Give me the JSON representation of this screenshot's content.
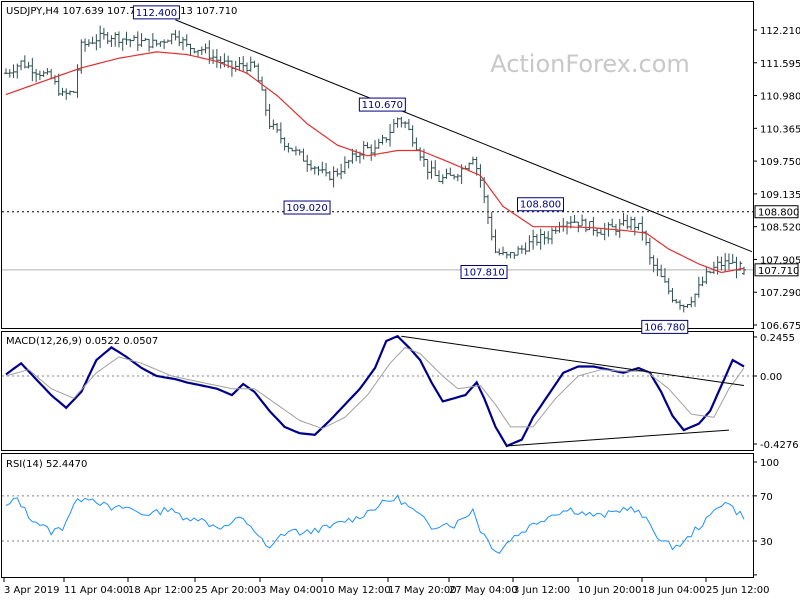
{
  "chart_data": [
    {
      "panel": "price",
      "type": "candlestick-ohlc",
      "title": "USDJPY,H4  107.639 107.767 107.613 107.710",
      "symbol": "USDJPY",
      "timeframe": "H4",
      "last_bar": {
        "open": 107.639,
        "high": 107.767,
        "low": 107.613,
        "close": 107.71
      },
      "watermark": "ActionForex.com",
      "colors": {
        "bars": "#2f4f4f",
        "moving_average": "#e03030",
        "trendline": "#000000",
        "label_box": "#000080"
      },
      "y_ticks": [
        "112.210",
        "111.595",
        "110.980",
        "110.365",
        "109.750",
        "109.135",
        "108.520",
        "107.905",
        "107.290",
        "106.675"
      ],
      "ylim": [
        106.52,
        112.52
      ],
      "x_ticks": [
        "3 Apr 2019",
        "11 Apr 04:00",
        "18 Apr 12:00",
        "25 Apr 20:00",
        "3 May 04:00",
        "10 May 12:00",
        "17 May 20:00",
        "27 May 04:00",
        "3 Jun 12:00",
        "10 Jun 20:00",
        "18 Jun 04:00",
        "25 Jun 12:00"
      ],
      "swing_labels": [
        {
          "text": "112.400",
          "bar": 45,
          "value": 112.4,
          "side": "above"
        },
        {
          "text": "110.670",
          "bar": 105,
          "value": 110.67,
          "side": "above"
        },
        {
          "text": "109.020",
          "bar": 85,
          "value": 109.02,
          "side": "below"
        },
        {
          "text": "108.800",
          "bar": 147,
          "value": 108.8,
          "side": "above"
        },
        {
          "text": "107.810",
          "bar": 132,
          "value": 107.81,
          "side": "below"
        },
        {
          "text": "106.780",
          "bar": 180,
          "value": 106.78,
          "side": "below"
        }
      ],
      "horizontal_levels": [
        {
          "value": 108.8,
          "label": "108.800",
          "style": "dotted"
        },
        {
          "value": 107.71,
          "label": "107.710",
          "style": "solid-grey",
          "current_price": true
        }
      ],
      "trendlines": [
        {
          "from": {
            "bar": 45,
            "value": 112.4
          },
          "to": {
            "bar": 196,
            "value": 108.05
          }
        }
      ],
      "close_anchors": [
        [
          0,
          111.4
        ],
        [
          4,
          111.6
        ],
        [
          8,
          111.45
        ],
        [
          12,
          111.3
        ],
        [
          15,
          110.98
        ],
        [
          18,
          111.05
        ],
        [
          20,
          111.9
        ],
        [
          24,
          112.05
        ],
        [
          28,
          112.1
        ],
        [
          34,
          112.0
        ],
        [
          40,
          111.95
        ],
        [
          45,
          112.15
        ],
        [
          48,
          111.9
        ],
        [
          52,
          111.85
        ],
        [
          56,
          111.65
        ],
        [
          60,
          111.5
        ],
        [
          63,
          111.55
        ],
        [
          66,
          111.5
        ],
        [
          68,
          111.0
        ],
        [
          70,
          110.45
        ],
        [
          74,
          110.1
        ],
        [
          78,
          109.85
        ],
        [
          82,
          109.65
        ],
        [
          85,
          109.45
        ],
        [
          88,
          109.55
        ],
        [
          92,
          109.8
        ],
        [
          95,
          110.0
        ],
        [
          98,
          109.95
        ],
        [
          101,
          110.2
        ],
        [
          104,
          110.55
        ],
        [
          106,
          110.45
        ],
        [
          109,
          110.05
        ],
        [
          112,
          109.6
        ],
        [
          115,
          109.4
        ],
        [
          118,
          109.45
        ],
        [
          121,
          109.6
        ],
        [
          124,
          109.85
        ],
        [
          126,
          109.4
        ],
        [
          128,
          108.7
        ],
        [
          130,
          108.05
        ],
        [
          133,
          107.95
        ],
        [
          137,
          108.1
        ],
        [
          140,
          108.25
        ],
        [
          144,
          108.35
        ],
        [
          147,
          108.6
        ],
        [
          150,
          108.65
        ],
        [
          154,
          108.55
        ],
        [
          158,
          108.45
        ],
        [
          162,
          108.5
        ],
        [
          166,
          108.6
        ],
        [
          169,
          108.45
        ],
        [
          171,
          107.9
        ],
        [
          174,
          107.55
        ],
        [
          177,
          107.2
        ],
        [
          180,
          107.05
        ],
        [
          183,
          107.25
        ],
        [
          186,
          107.6
        ],
        [
          189,
          107.8
        ],
        [
          192,
          107.85
        ],
        [
          196,
          107.71
        ]
      ],
      "ma_anchors": [
        [
          0,
          111.0
        ],
        [
          10,
          111.25
        ],
        [
          20,
          111.5
        ],
        [
          30,
          111.68
        ],
        [
          40,
          111.8
        ],
        [
          48,
          111.75
        ],
        [
          56,
          111.62
        ],
        [
          64,
          111.4
        ],
        [
          72,
          110.98
        ],
        [
          80,
          110.45
        ],
        [
          88,
          110.05
        ],
        [
          96,
          109.85
        ],
        [
          104,
          109.95
        ],
        [
          110,
          109.95
        ],
        [
          118,
          109.72
        ],
        [
          126,
          109.48
        ],
        [
          132,
          108.9
        ],
        [
          140,
          108.52
        ],
        [
          148,
          108.52
        ],
        [
          156,
          108.5
        ],
        [
          164,
          108.45
        ],
        [
          170,
          108.4
        ],
        [
          176,
          108.1
        ],
        [
          184,
          107.82
        ],
        [
          190,
          107.66
        ],
        [
          196,
          107.74
        ]
      ]
    },
    {
      "panel": "macd",
      "type": "line",
      "title": "MACD(12,26,9) 0.0522 0.0507",
      "params": [
        12,
        26,
        9
      ],
      "macd_value": 0.0522,
      "signal_value": 0.0507,
      "y_ticks": [
        "0.2455",
        "0.00",
        "-0.4276"
      ],
      "ylim": [
        -0.5,
        0.3
      ],
      "colors": {
        "macd": "#00008b",
        "signal": "#a0a0a0",
        "trendline": "#000000"
      },
      "series": [
        {
          "name": "MACD",
          "anchors": [
            [
              0,
              0.01
            ],
            [
              4,
              0.08
            ],
            [
              8,
              -0.02
            ],
            [
              12,
              -0.12
            ],
            [
              16,
              -0.2
            ],
            [
              20,
              -0.1
            ],
            [
              24,
              0.1
            ],
            [
              28,
              0.18
            ],
            [
              32,
              0.12
            ],
            [
              36,
              0.05
            ],
            [
              40,
              0.0
            ],
            [
              45,
              -0.02
            ],
            [
              48,
              -0.04
            ],
            [
              52,
              -0.06
            ],
            [
              56,
              -0.08
            ],
            [
              60,
              -0.12
            ],
            [
              63,
              -0.05
            ],
            [
              66,
              -0.1
            ],
            [
              70,
              -0.22
            ],
            [
              74,
              -0.32
            ],
            [
              78,
              -0.36
            ],
            [
              82,
              -0.37
            ],
            [
              86,
              -0.28
            ],
            [
              90,
              -0.18
            ],
            [
              94,
              -0.08
            ],
            [
              98,
              0.05
            ],
            [
              101,
              0.22
            ],
            [
              104,
              0.25
            ],
            [
              107,
              0.18
            ],
            [
              110,
              0.1
            ],
            [
              113,
              -0.04
            ],
            [
              116,
              -0.16
            ],
            [
              119,
              -0.14
            ],
            [
              122,
              -0.12
            ],
            [
              125,
              -0.04
            ],
            [
              127,
              -0.14
            ],
            [
              130,
              -0.32
            ],
            [
              133,
              -0.44
            ],
            [
              137,
              -0.4
            ],
            [
              140,
              -0.26
            ],
            [
              144,
              -0.12
            ],
            [
              148,
              0.02
            ],
            [
              152,
              0.06
            ],
            [
              156,
              0.06
            ],
            [
              160,
              0.04
            ],
            [
              164,
              0.02
            ],
            [
              168,
              0.05
            ],
            [
              171,
              0.02
            ],
            [
              174,
              -0.1
            ],
            [
              177,
              -0.25
            ],
            [
              180,
              -0.34
            ],
            [
              184,
              -0.3
            ],
            [
              187,
              -0.22
            ],
            [
              190,
              -0.06
            ],
            [
              193,
              0.1
            ],
            [
              196,
              0.06
            ]
          ]
        },
        {
          "name": "Signal",
          "anchors": [
            [
              0,
              0.0
            ],
            [
              6,
              0.04
            ],
            [
              12,
              -0.08
            ],
            [
              18,
              -0.14
            ],
            [
              24,
              0.02
            ],
            [
              30,
              0.12
            ],
            [
              36,
              0.08
            ],
            [
              44,
              0.0
            ],
            [
              52,
              -0.04
            ],
            [
              60,
              -0.08
            ],
            [
              66,
              -0.08
            ],
            [
              72,
              -0.18
            ],
            [
              78,
              -0.28
            ],
            [
              84,
              -0.33
            ],
            [
              90,
              -0.26
            ],
            [
              96,
              -0.12
            ],
            [
              102,
              0.08
            ],
            [
              106,
              0.18
            ],
            [
              110,
              0.14
            ],
            [
              116,
              0.0
            ],
            [
              120,
              -0.08
            ],
            [
              126,
              -0.06
            ],
            [
              130,
              -0.18
            ],
            [
              134,
              -0.32
            ],
            [
              140,
              -0.32
            ],
            [
              146,
              -0.14
            ],
            [
              152,
              0.0
            ],
            [
              158,
              0.04
            ],
            [
              164,
              0.03
            ],
            [
              170,
              0.03
            ],
            [
              176,
              -0.08
            ],
            [
              182,
              -0.24
            ],
            [
              188,
              -0.26
            ],
            [
              192,
              -0.08
            ],
            [
              196,
              0.05
            ]
          ]
        }
      ],
      "trendlines": [
        {
          "from": {
            "bar": 105,
            "value": 0.25
          },
          "to": {
            "bar": 196,
            "value": -0.06
          }
        },
        {
          "from": {
            "bar": 133,
            "value": -0.44
          },
          "to": {
            "bar": 192,
            "value": -0.34
          }
        }
      ]
    },
    {
      "panel": "rsi",
      "type": "line",
      "title": "RSI(14) 52.4470",
      "params": [
        14
      ],
      "rsi_value": 52.447,
      "y_ticks": [
        "100",
        "70",
        "30",
        "0"
      ],
      "ylim": [
        0,
        100
      ],
      "levels": [
        70,
        30
      ],
      "colors": {
        "rsi": "#1e90ff",
        "levels": "#808080"
      },
      "series": [
        {
          "name": "RSI",
          "anchors": [
            [
              0,
              60
            ],
            [
              3,
              68
            ],
            [
              6,
              52
            ],
            [
              9,
              45
            ],
            [
              12,
              38
            ],
            [
              15,
              42
            ],
            [
              18,
              62
            ],
            [
              21,
              70
            ],
            [
              24,
              66
            ],
            [
              28,
              58
            ],
            [
              32,
              60
            ],
            [
              36,
              54
            ],
            [
              40,
              55
            ],
            [
              44,
              60
            ],
            [
              47,
              48
            ],
            [
              50,
              52
            ],
            [
              54,
              45
            ],
            [
              58,
              42
            ],
            [
              62,
              50
            ],
            [
              65,
              44
            ],
            [
              68,
              30
            ],
            [
              70,
              22
            ],
            [
              73,
              35
            ],
            [
              76,
              40
            ],
            [
              79,
              36
            ],
            [
              82,
              40
            ],
            [
              86,
              42
            ],
            [
              90,
              48
            ],
            [
              93,
              50
            ],
            [
              97,
              58
            ],
            [
              101,
              65
            ],
            [
              104,
              68
            ],
            [
              107,
              60
            ],
            [
              110,
              52
            ],
            [
              113,
              42
            ],
            [
              116,
              46
            ],
            [
              119,
              44
            ],
            [
              122,
              52
            ],
            [
              124,
              58
            ],
            [
              126,
              40
            ],
            [
              129,
              26
            ],
            [
              131,
              20
            ],
            [
              134,
              32
            ],
            [
              137,
              38
            ],
            [
              140,
              45
            ],
            [
              143,
              50
            ],
            [
              146,
              55
            ],
            [
              150,
              58
            ],
            [
              154,
              54
            ],
            [
              158,
              52
            ],
            [
              162,
              56
            ],
            [
              165,
              60
            ],
            [
              168,
              55
            ],
            [
              171,
              45
            ],
            [
              174,
              30
            ],
            [
              177,
              25
            ],
            [
              180,
              28
            ],
            [
              183,
              40
            ],
            [
              186,
              48
            ],
            [
              189,
              60
            ],
            [
              191,
              66
            ],
            [
              194,
              56
            ],
            [
              196,
              52
            ]
          ]
        }
      ]
    }
  ]
}
